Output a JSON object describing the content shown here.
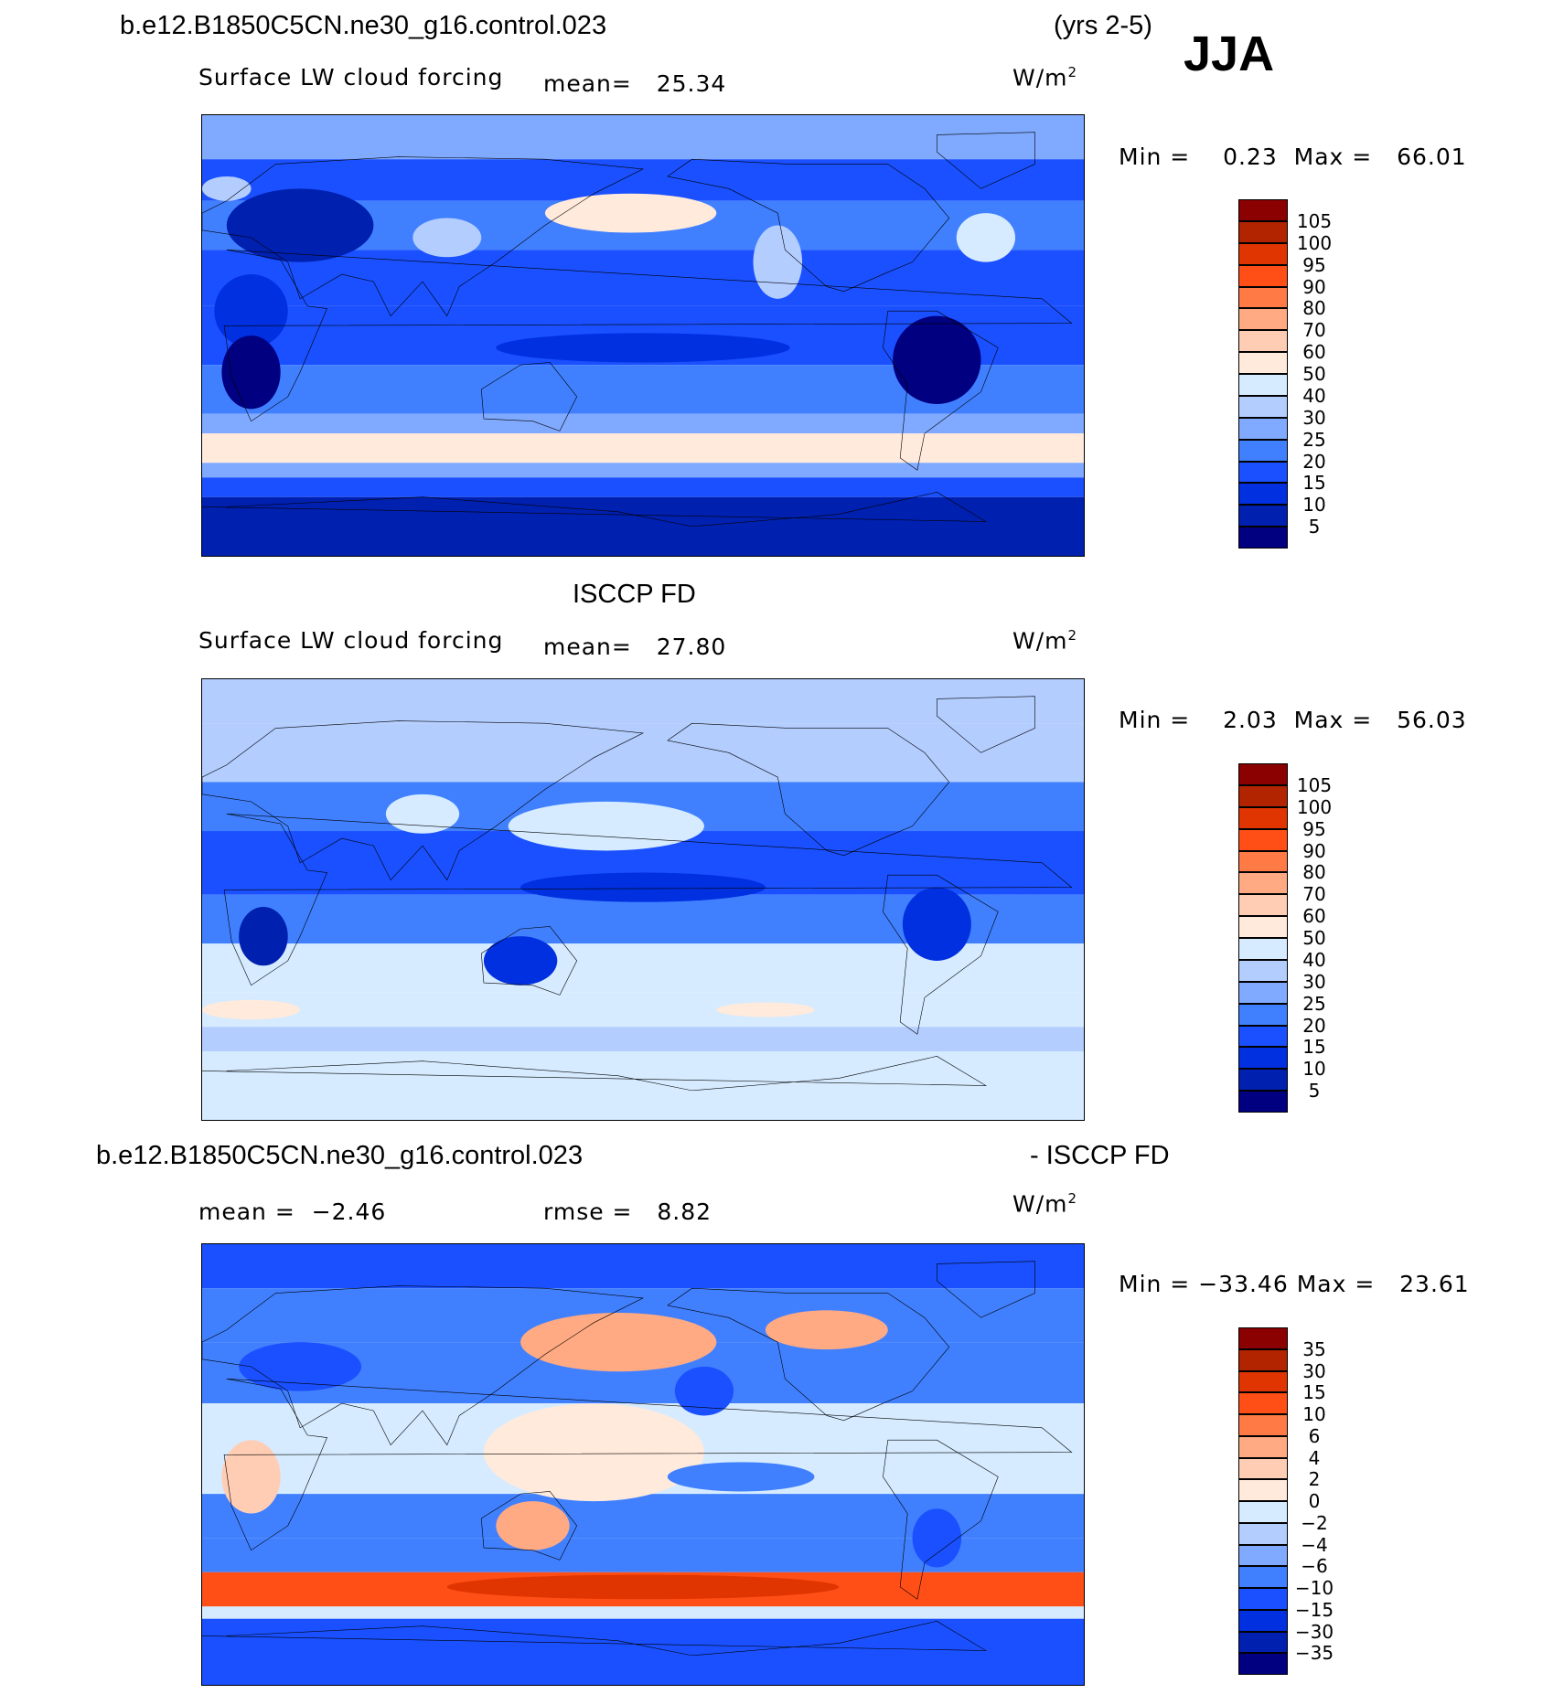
{
  "header": {
    "case_title": "b.e12.B1850C5CN.ne30_g16.control.023",
    "years": "(yrs 2-5)",
    "season": "JJA"
  },
  "colors": [
    "#8b0000",
    "#b22400",
    "#e03500",
    "#ff4f17",
    "#ff7a45",
    "#ffaa82",
    "#ffcdb4",
    "#ffeadb",
    "#d6ebff",
    "#b3cdff",
    "#80aaff",
    "#4080ff",
    "#1a50ff",
    "#0030e0",
    "#0020b0",
    "#000080"
  ],
  "chart_data": [
    {
      "type": "heatmap",
      "title": "b.e12.B1850C5CN.ne30_g16.control.023",
      "variable": "Surface LW cloud forcing",
      "mean_label": "mean=",
      "mean": "25.34",
      "units": "W/m",
      "units_sup": "2",
      "min_label": "Min =",
      "min": "0.23",
      "max_label": "Max =",
      "max": "66.01",
      "levels": [
        "105",
        "100",
        "95",
        "90",
        "80",
        "70",
        "60",
        "50",
        "40",
        "30",
        "25",
        "20",
        "15",
        "10",
        "5"
      ]
    },
    {
      "type": "heatmap",
      "title": "ISCCP FD",
      "variable": "Surface LW cloud forcing",
      "mean_label": "mean=",
      "mean": "27.80",
      "units": "W/m",
      "units_sup": "2",
      "min_label": "Min =",
      "min": "2.03",
      "max_label": "Max =",
      "max": "56.03",
      "levels": [
        "105",
        "100",
        "95",
        "90",
        "80",
        "70",
        "60",
        "50",
        "40",
        "30",
        "25",
        "20",
        "15",
        "10",
        "5"
      ]
    },
    {
      "type": "heatmap",
      "title_left": "b.e12.B1850C5CN.ne30_g16.control.023",
      "title_right": "- ISCCP FD",
      "mean_label": "mean =",
      "mean": "−2.46",
      "rmse_label": "rmse =",
      "rmse": "8.82",
      "units": "W/m",
      "units_sup": "2",
      "min_label": "Min =",
      "min": "−33.46",
      "max_label": "Max =",
      "max": "23.61",
      "levels": [
        "35",
        "30",
        "15",
        "10",
        "6",
        "4",
        "2",
        "0",
        "−2",
        "−4",
        "−6",
        "−10",
        "−15",
        "−30",
        "−35"
      ]
    }
  ]
}
